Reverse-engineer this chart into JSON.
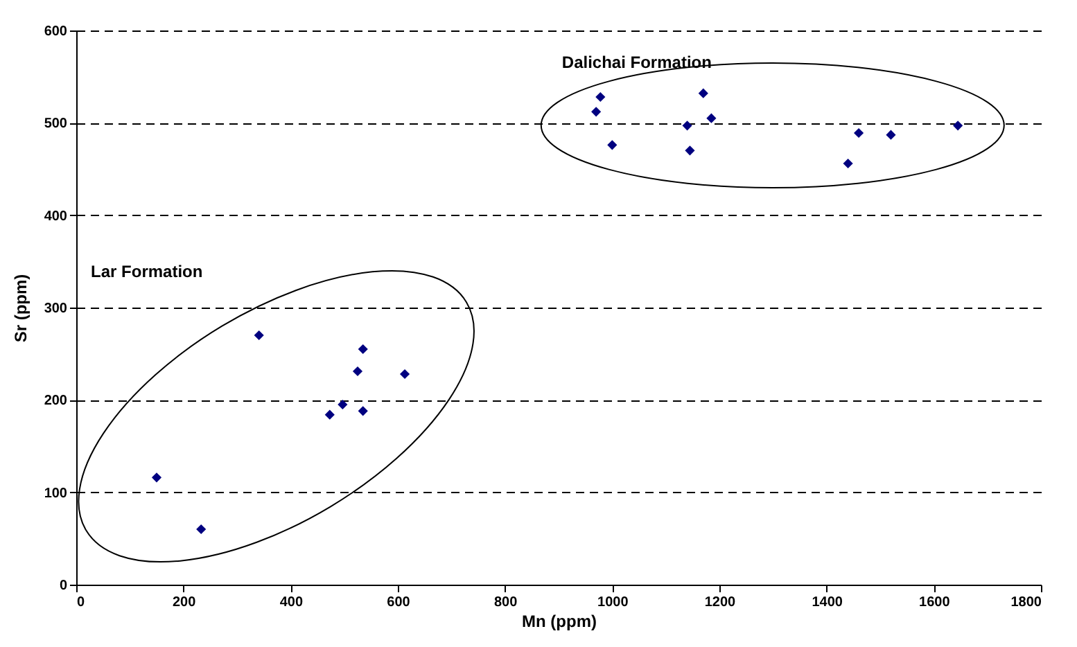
{
  "chart_data": {
    "type": "scatter",
    "xlabel": "Mn (ppm)",
    "ylabel": "Sr (ppm)",
    "annotations": [
      "Dalichai Formation",
      "Lar Formation"
    ],
    "x": [
      150,
      233,
      341,
      473,
      497,
      525,
      535,
      535,
      613,
      970,
      978,
      1000,
      1140,
      1145,
      1170,
      1185,
      1440,
      1460,
      1520,
      1645
    ],
    "series": [
      {
        "color": "#000080",
        "values": [
          116,
          60,
          270,
          184,
          195,
          231,
          255,
          188,
          228,
          512,
          528,
          476,
          497,
          470,
          532,
          505,
          456,
          489,
          487,
          497
        ]
      }
    ],
    "xlim": [
      0,
      1800
    ],
    "xticks": [
      0,
      200,
      400,
      600,
      800,
      {
        "value": 1000,
        "label": "1000"
      },
      {
        "value": 1200,
        "label": "1200"
      },
      {
        "value": 1400,
        "label": "1400"
      },
      {
        "value": 1600,
        "label": "1600"
      },
      {
        "value": 1800,
        "label": "1800"
      }
    ],
    "ylim": [
      0,
      600
    ],
    "yticks": [
      0,
      100,
      200,
      300,
      400,
      500,
      600
    ],
    "grid": "y",
    "marker": "diamond",
    "legend": false
  }
}
